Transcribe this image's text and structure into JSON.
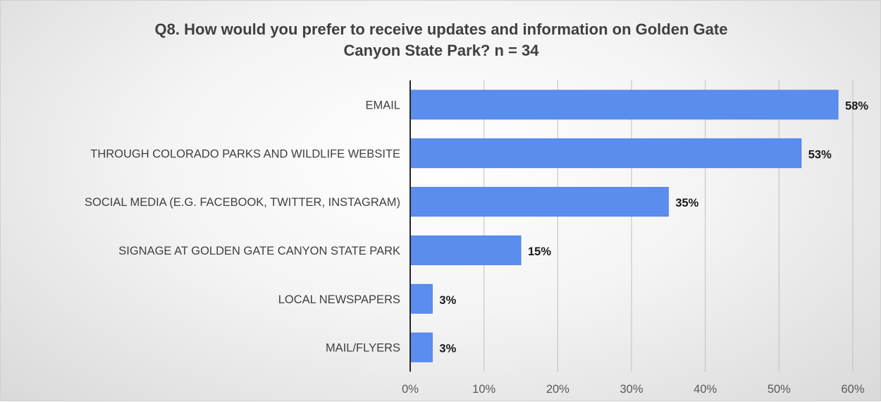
{
  "chart_data": {
    "type": "bar",
    "orientation": "horizontal",
    "title_lines": [
      "Q8. How would you prefer to receive updates and information on Golden Gate",
      "Canyon State Park? n = 34"
    ],
    "categories": [
      "EMAIL",
      "THROUGH COLORADO PARKS AND WILDLIFE WEBSITE",
      "SOCIAL MEDIA (E.G. FACEBOOK, TWITTER, INSTAGRAM)",
      "SIGNAGE AT GOLDEN GATE CANYON STATE PARK",
      "LOCAL NEWSPAPERS",
      "MAIL/FLYERS"
    ],
    "values": [
      58,
      53,
      35,
      15,
      3,
      3
    ],
    "data_labels": [
      "58%",
      "53%",
      "35%",
      "15%",
      "3%",
      "3%"
    ],
    "xlim": [
      0,
      60
    ],
    "xticks": [
      0,
      10,
      20,
      30,
      40,
      50,
      60
    ],
    "xtick_labels": [
      "0%",
      "10%",
      "20%",
      "30%",
      "40%",
      "50%",
      "60%"
    ],
    "xlabel": "",
    "ylabel": "",
    "grid": "vertical",
    "legend": "none",
    "bar_color": "#5b8def"
  }
}
